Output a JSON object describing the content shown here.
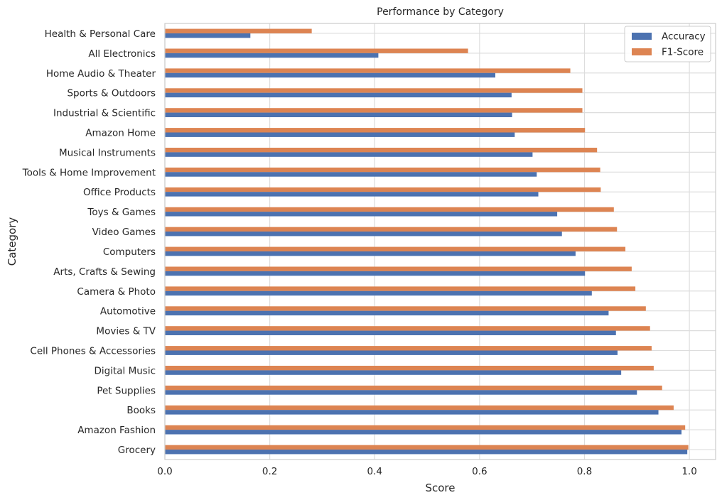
{
  "chart_data": {
    "type": "bar",
    "orientation": "horizontal",
    "title": "Performance by Category",
    "xlabel": "Score",
    "ylabel": "Category",
    "xlim": [
      0,
      1.05
    ],
    "xticks": [
      "0.0",
      "0.2",
      "0.4",
      "0.6",
      "0.8",
      "1.0"
    ],
    "grid": true,
    "legend_position": "top-right",
    "colors": {
      "Accuracy": "#4c72b0",
      "F1-Score": "#dd8452"
    },
    "categories": [
      "Health & Personal Care",
      "All Electronics",
      "Home Audio & Theater",
      "Sports & Outdoors",
      "Industrial & Scientific",
      "Amazon Home",
      "Musical Instruments",
      "Tools & Home Improvement",
      "Office Products",
      "Toys & Games",
      "Video Games",
      "Computers",
      "Arts, Crafts & Sewing",
      "Camera & Photo",
      "Automotive",
      "Movies & TV",
      "Cell Phones & Accessories",
      "Digital Music",
      "Pet Supplies",
      "Books",
      "Amazon Fashion",
      "Grocery"
    ],
    "series": [
      {
        "name": "Accuracy",
        "values": [
          0.163,
          0.407,
          0.63,
          0.661,
          0.662,
          0.667,
          0.701,
          0.709,
          0.712,
          0.748,
          0.757,
          0.783,
          0.801,
          0.814,
          0.846,
          0.86,
          0.863,
          0.87,
          0.9,
          0.941,
          0.985,
          0.996
        ]
      },
      {
        "name": "F1-Score",
        "values": [
          0.28,
          0.578,
          0.773,
          0.796,
          0.796,
          0.801,
          0.824,
          0.83,
          0.831,
          0.856,
          0.862,
          0.878,
          0.89,
          0.897,
          0.917,
          0.925,
          0.928,
          0.932,
          0.948,
          0.97,
          0.992,
          0.998
        ]
      }
    ]
  }
}
